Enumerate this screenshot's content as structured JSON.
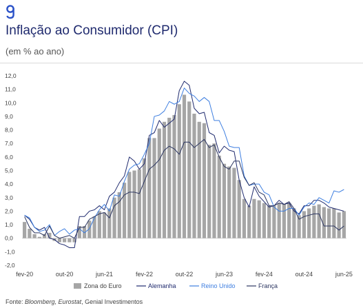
{
  "header": {
    "logo_icon": "genial-g-logo",
    "title": "Inflação ao Consumidor (CPI)",
    "subtitle": "(em % ao ano)"
  },
  "footer": {
    "label": "Fonte:",
    "sources": "Bloomberg, Eurostat",
    "rest": ", Genial Investimentos"
  },
  "colors": {
    "bars": "#a6a6a6",
    "alemanha": "#1f2a6e",
    "reino_unido": "#3d7ee0",
    "franca": "#2b3560",
    "brand": "#2b52c8"
  },
  "chart_data": {
    "type": "bar",
    "x_ticks": [
      "fev-20",
      "out-20",
      "jun-21",
      "fev-22",
      "out-22",
      "jun-23",
      "fev-24",
      "out-24",
      "jun-25"
    ],
    "y_ticks": [
      "12,0",
      "11,0",
      "10,0",
      "9,0",
      "8,0",
      "7,0",
      "6,0",
      "5,0",
      "4,0",
      "3,0",
      "2,0",
      "1,0",
      "0,0",
      "-1,0",
      "-2,0"
    ],
    "ylim": [
      -2,
      12
    ],
    "grid": false,
    "legend_position": "bottom",
    "legend": [
      "Zona do Euro",
      "Alemanha",
      "Reino Unido",
      "França"
    ],
    "categories": [
      "fev-20",
      "mar-20",
      "abr-20",
      "mai-20",
      "jun-20",
      "jul-20",
      "ago-20",
      "set-20",
      "out-20",
      "nov-20",
      "dez-20",
      "jan-21",
      "fev-21",
      "mar-21",
      "abr-21",
      "mai-21",
      "jun-21",
      "jul-21",
      "ago-21",
      "set-21",
      "out-21",
      "nov-21",
      "dez-21",
      "jan-22",
      "fev-22",
      "mar-22",
      "abr-22",
      "mai-22",
      "jun-22",
      "jul-22",
      "ago-22",
      "set-22",
      "out-22",
      "nov-22",
      "dez-22",
      "jan-23",
      "fev-23",
      "mar-23",
      "abr-23",
      "mai-23",
      "jun-23",
      "jul-23",
      "ago-23",
      "set-23",
      "out-23",
      "nov-23",
      "dez-23",
      "jan-24",
      "fev-24",
      "mar-24",
      "abr-24",
      "mai-24",
      "jun-24",
      "jul-24",
      "ago-24",
      "set-24",
      "out-24",
      "nov-24",
      "dez-24",
      "jan-25",
      "fev-25",
      "mar-25",
      "abr-25",
      "mai-25",
      "jun-25"
    ],
    "series": [
      {
        "name": "Zona do Euro",
        "style": "bar",
        "values": [
          1.2,
          0.7,
          0.3,
          0.1,
          0.3,
          0.4,
          -0.2,
          -0.3,
          -0.3,
          -0.3,
          -0.3,
          0.9,
          0.9,
          1.3,
          1.6,
          2.0,
          1.9,
          2.2,
          3.0,
          3.4,
          4.1,
          4.9,
          5.0,
          5.1,
          5.9,
          7.4,
          7.4,
          8.1,
          8.6,
          8.9,
          9.1,
          9.9,
          10.6,
          10.1,
          9.2,
          8.6,
          8.5,
          6.9,
          7.0,
          6.1,
          5.5,
          5.3,
          5.2,
          4.3,
          2.9,
          2.4,
          2.9,
          2.8,
          2.6,
          2.4,
          2.4,
          2.6,
          2.5,
          2.6,
          2.2,
          1.7,
          2.0,
          2.2,
          2.4,
          2.5,
          2.3,
          2.2,
          2.2,
          1.9,
          2.0
        ]
      },
      {
        "name": "Alemanha",
        "style": "line",
        "values": [
          1.7,
          1.4,
          0.8,
          0.6,
          0.8,
          0.0,
          -0.1,
          -0.4,
          -0.5,
          -0.7,
          -0.7,
          1.6,
          1.6,
          2.0,
          2.1,
          2.4,
          2.1,
          3.1,
          3.4,
          4.1,
          4.6,
          6.0,
          5.7,
          5.1,
          5.5,
          7.6,
          7.8,
          8.7,
          8.2,
          8.5,
          8.8,
          10.9,
          11.6,
          11.3,
          9.6,
          9.2,
          9.3,
          7.8,
          7.6,
          6.3,
          6.8,
          6.5,
          6.4,
          4.3,
          3.0,
          2.3,
          3.8,
          3.1,
          2.7,
          2.3,
          2.4,
          2.8,
          2.5,
          2.6,
          2.0,
          1.8,
          2.4,
          2.4,
          2.8,
          2.8,
          2.6,
          2.3,
          2.2,
          2.1,
          2.0
        ]
      },
      {
        "name": "Reino Unido",
        "style": "line",
        "values": [
          1.7,
          1.5,
          0.8,
          0.5,
          0.6,
          1.0,
          0.2,
          0.5,
          0.7,
          0.3,
          0.6,
          0.7,
          0.4,
          0.7,
          1.5,
          2.1,
          2.5,
          2.0,
          3.2,
          3.1,
          4.2,
          5.1,
          5.4,
          5.5,
          6.2,
          7.0,
          9.0,
          9.1,
          9.4,
          10.1,
          9.9,
          10.1,
          11.1,
          10.7,
          10.5,
          10.1,
          10.4,
          10.1,
          8.7,
          8.7,
          7.9,
          6.8,
          6.7,
          6.7,
          4.6,
          3.9,
          4.0,
          4.0,
          3.4,
          3.2,
          2.3,
          2.0,
          2.0,
          2.2,
          2.2,
          1.7,
          2.3,
          2.6,
          2.5,
          3.0,
          2.8,
          2.6,
          3.5,
          3.4,
          3.6
        ]
      },
      {
        "name": "França",
        "style": "line",
        "values": [
          1.6,
          0.8,
          0.4,
          0.4,
          0.2,
          0.9,
          0.2,
          0.0,
          0.1,
          0.2,
          0.0,
          0.8,
          0.8,
          1.4,
          1.6,
          1.8,
          1.9,
          1.5,
          2.4,
          2.7,
          3.2,
          3.4,
          3.4,
          3.3,
          4.2,
          5.1,
          5.4,
          5.8,
          6.5,
          6.8,
          6.6,
          6.2,
          7.1,
          7.1,
          6.7,
          7.0,
          7.3,
          6.7,
          6.9,
          6.0,
          5.3,
          5.1,
          5.7,
          5.7,
          4.5,
          3.9,
          4.1,
          3.4,
          3.2,
          2.4,
          2.4,
          2.6,
          2.5,
          2.7,
          2.2,
          1.4,
          1.6,
          1.7,
          1.8,
          1.8,
          0.9,
          0.9,
          0.9,
          0.6,
          0.9
        ]
      }
    ]
  }
}
